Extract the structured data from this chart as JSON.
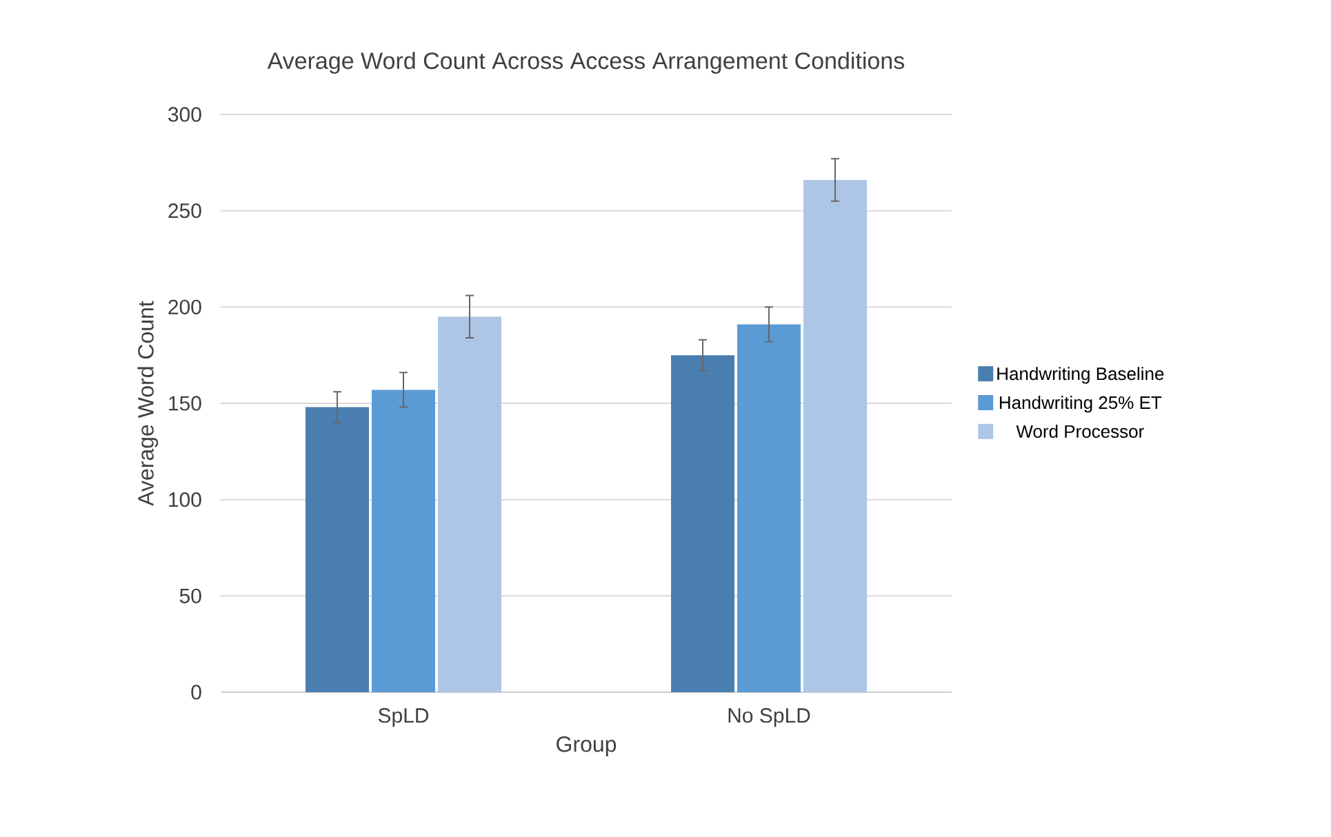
{
  "chart_data": {
    "type": "bar",
    "title": "Average Word Count Across Access Arrangement Conditions",
    "xlabel": "Group",
    "ylabel": "Average Word Count",
    "categories": [
      "SpLD",
      "No SpLD"
    ],
    "series": [
      {
        "name": "Handwriting Baseline",
        "color": "#4a7eb0",
        "values": [
          148,
          175
        ],
        "errors": [
          8,
          8
        ]
      },
      {
        "name": "Handwriting 25% ET",
        "color": "#5b9bd5",
        "values": [
          157,
          191
        ],
        "errors": [
          9,
          9
        ]
      },
      {
        "name": "Word Processor",
        "color": "#adc6e6",
        "values": [
          195,
          266
        ],
        "errors": [
          11,
          11
        ]
      }
    ],
    "ylim": [
      0,
      300
    ],
    "yticks": [
      0,
      50,
      100,
      150,
      200,
      250,
      300
    ],
    "grid": "y",
    "legend": "right"
  }
}
